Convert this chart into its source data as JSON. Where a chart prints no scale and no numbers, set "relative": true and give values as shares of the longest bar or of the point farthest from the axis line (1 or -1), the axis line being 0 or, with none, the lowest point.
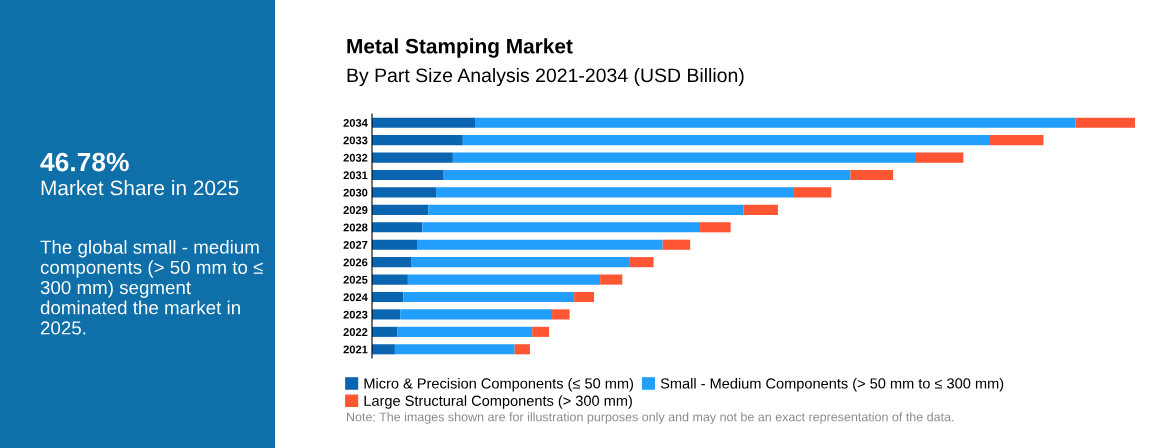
{
  "chart_data": {
    "type": "bar",
    "orientation": "horizontal",
    "stacked": true,
    "relative": true,
    "title": "Metal Stamping Market",
    "subtitle": "By Part Size Analysis 2021-2034 (USD Billion)",
    "categories": [
      "2034",
      "2033",
      "2032",
      "2031",
      "2030",
      "2029",
      "2028",
      "2027",
      "2026",
      "2025",
      "2024",
      "2023",
      "2022",
      "2021"
    ],
    "series": [
      {
        "name": "Micro & Precision Components (≤ 50 mm)",
        "color": "#0b64b0",
        "values": [
          0.135,
          0.119,
          0.106,
          0.094,
          0.084,
          0.074,
          0.066,
          0.059,
          0.052,
          0.047,
          0.041,
          0.037,
          0.033,
          0.03
        ]
      },
      {
        "name": "Small - Medium Components (> 50 mm to ≤ 300 mm)",
        "color": "#229efc",
        "values": [
          0.787,
          0.691,
          0.607,
          0.533,
          0.469,
          0.413,
          0.364,
          0.322,
          0.285,
          0.252,
          0.224,
          0.199,
          0.177,
          0.157
        ]
      },
      {
        "name": "Large Structural Components (> 300 mm)",
        "color": "#fe5533",
        "values": [
          0.078,
          0.07,
          0.062,
          0.056,
          0.049,
          0.045,
          0.04,
          0.036,
          0.032,
          0.029,
          0.026,
          0.023,
          0.022,
          0.02
        ]
      }
    ],
    "legend": "bottom",
    "annotations": [
      "46.78%",
      "Market Share in 2025",
      "The global small - medium components (> 50 mm to ≤ 300 mm) segment dominated the market in 2025.",
      "Note: The images shown are for illustration purposes only and may not be an exact representation of the data."
    ]
  }
}
